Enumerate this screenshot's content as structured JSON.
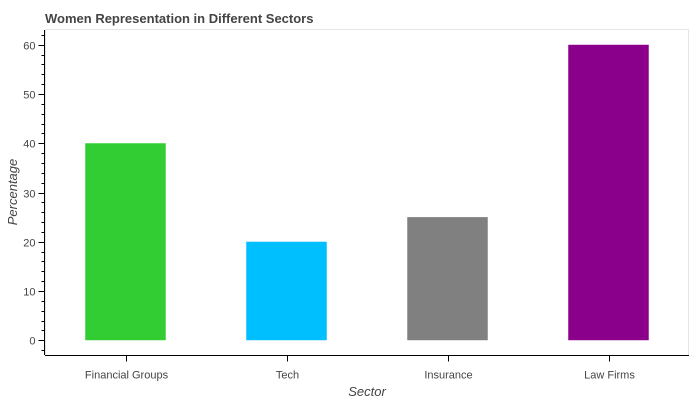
{
  "chart_data": {
    "type": "bar",
    "title": "Women Representation in Different Sectors",
    "xlabel": "Sector",
    "ylabel": "Percentage",
    "categories": [
      "Financial Groups",
      "Tech",
      "Insurance",
      "Law Firms"
    ],
    "values": [
      40,
      20,
      25,
      60
    ],
    "colors": [
      "#32cd32",
      "#00bfff",
      "#808080",
      "#8b008b"
    ],
    "ylim": [
      -3,
      63
    ],
    "yticks": [
      0,
      10,
      20,
      30,
      40,
      50,
      60
    ],
    "grid": false,
    "legend": "none"
  }
}
